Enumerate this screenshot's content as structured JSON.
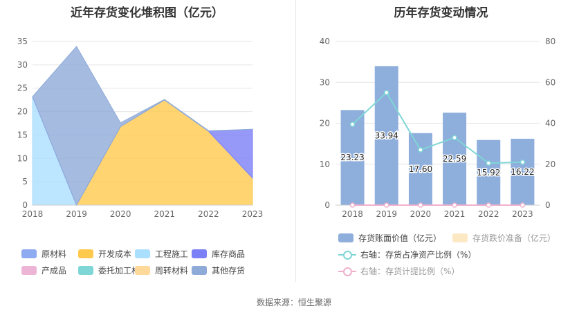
{
  "source": "数据来源：恒生聚源",
  "chart_data": [
    {
      "type": "area",
      "title": "近年存货变化堆积图（亿元）",
      "x": [
        "2018",
        "2019",
        "2020",
        "2021",
        "2022",
        "2023"
      ],
      "ylim": [
        0,
        35
      ],
      "yticks": [
        "0",
        "5",
        "10",
        "15",
        "20",
        "25",
        "30",
        "35"
      ],
      "stacked": true,
      "series": [
        {
          "name": "原材料",
          "color": "#8eaaf0",
          "values": [
            0,
            0,
            0,
            0,
            0,
            0
          ]
        },
        {
          "name": "开发成本",
          "color": "#ffc94d",
          "values": [
            0,
            0,
            16.8,
            22.5,
            15.8,
            5.8
          ]
        },
        {
          "name": "工程施工",
          "color": "#abdfff",
          "values": [
            23.2,
            0,
            0,
            0,
            0,
            0
          ]
        },
        {
          "name": "库存商品",
          "color": "#7c80f6",
          "values": [
            0,
            0,
            0,
            0,
            0,
            10.4
          ]
        },
        {
          "name": "产成品",
          "color": "#ecb5d6",
          "values": [
            0,
            0,
            0,
            0,
            0,
            0
          ]
        },
        {
          "name": "委托加工材料",
          "color": "#7fd6d6",
          "values": [
            0,
            0,
            0,
            0,
            0,
            0
          ]
        },
        {
          "name": "周转材料",
          "color": "#ffd99a",
          "values": [
            0,
            0,
            0,
            0,
            0,
            0
          ]
        },
        {
          "name": "其他存货",
          "color": "#8eaad8",
          "values": [
            0,
            33.94,
            0.8,
            0.1,
            0.12,
            0
          ]
        }
      ],
      "legend_position": "bottom"
    },
    {
      "type": "bar",
      "title": "历年存货变动情况",
      "categories": [
        "2018",
        "2019",
        "2020",
        "2021",
        "2022",
        "2023"
      ],
      "ylim": [
        0,
        40
      ],
      "yticks": [
        "0",
        "10",
        "20",
        "30",
        "40"
      ],
      "y2lim": [
        0,
        80
      ],
      "y2ticks": [
        "0",
        "20",
        "40",
        "60",
        "80"
      ],
      "series": [
        {
          "name": "存货账面价值（亿元）",
          "type": "bar",
          "color": "#8eaedc",
          "values": [
            23.23,
            33.94,
            17.6,
            22.59,
            15.92,
            16.22
          ],
          "labels": [
            "23.23",
            "33.94",
            "17.60",
            "22.59",
            "15.92",
            "16.22"
          ]
        },
        {
          "name": "存货跌价准备（亿元）",
          "type": "bar",
          "color": "#fde8c4",
          "values": [
            0,
            0,
            0,
            0,
            0,
            0
          ]
        },
        {
          "name": "右轴：存货占净资产比例（%）",
          "type": "line",
          "axis": "right",
          "color": "#7fd6d6",
          "values": [
            39.5,
            55.0,
            27.0,
            33.0,
            20.5,
            21.0
          ]
        },
        {
          "name": "右轴：存货计提比例（%）",
          "type": "line",
          "axis": "right",
          "color": "#f0b0cc",
          "values": [
            0,
            0,
            0,
            0,
            0,
            0
          ]
        }
      ],
      "legend_position": "bottom"
    }
  ]
}
